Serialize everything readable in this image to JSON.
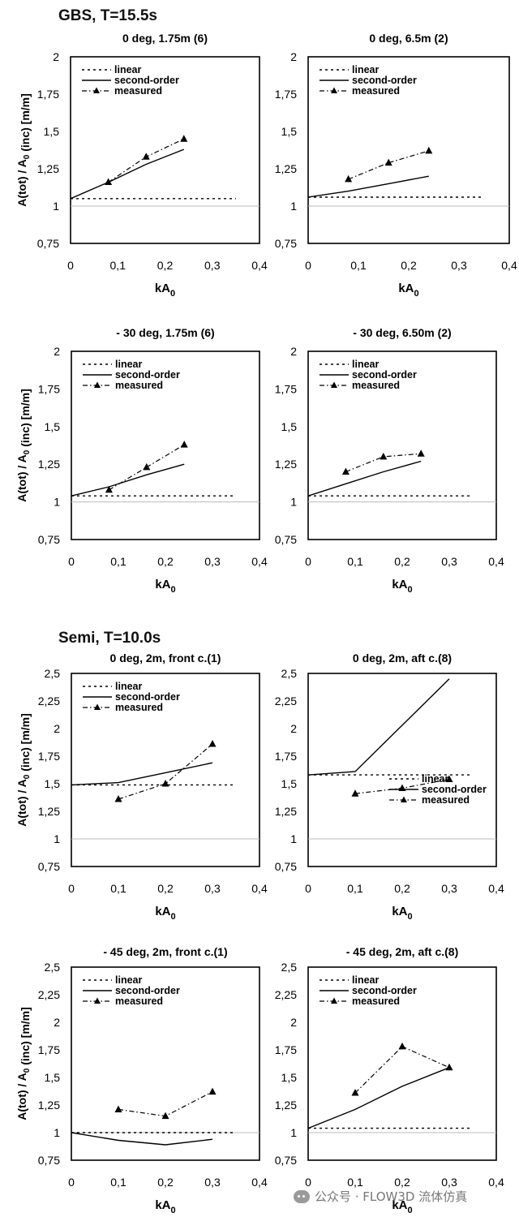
{
  "sections": [
    {
      "title": "GBS,  T=15.5s"
    },
    {
      "title": "Semi,  T=10.0s"
    }
  ],
  "watermark": "公众号 · FLOW3D 流体仿真",
  "chart_data": [
    {
      "type": "line",
      "title": "0 deg, 1.75m (6)",
      "ylabel": "A(tot) / A0 (inc) [m/m]",
      "xlabel": "kA0",
      "xlim": [
        0,
        0.4
      ],
      "ylim": [
        0.75,
        2
      ],
      "xticks": [
        "0",
        "0,1",
        "0,2",
        "0,3",
        "0,4"
      ],
      "yticks": [
        "0,75",
        "1",
        "1,25",
        "1,5",
        "1,75",
        "2"
      ],
      "legend_position": "top-left",
      "series": [
        {
          "name": "linear",
          "x": [
            0,
            0.35
          ],
          "y": [
            1.05,
            1.05
          ]
        },
        {
          "name": "second-order",
          "x": [
            0,
            0.08,
            0.16,
            0.24
          ],
          "y": [
            1.05,
            1.16,
            1.28,
            1.38
          ]
        },
        {
          "name": "measured",
          "x": [
            0.08,
            0.16,
            0.24
          ],
          "y": [
            1.16,
            1.33,
            1.45
          ]
        }
      ]
    },
    {
      "type": "line",
      "title": "0 deg, 6.5m (2)",
      "xlabel": "kA0",
      "xlim": [
        0,
        0.4
      ],
      "ylim": [
        0.75,
        2
      ],
      "xticks": [
        "0",
        "0,1",
        "0,2",
        "0,3",
        "0,4"
      ],
      "yticks": [
        "0,75",
        "1",
        "1,25",
        "1,5",
        "1,75",
        "2"
      ],
      "legend_position": "top-left",
      "series": [
        {
          "name": "linear",
          "x": [
            0,
            0.35
          ],
          "y": [
            1.06,
            1.06
          ]
        },
        {
          "name": "second-order",
          "x": [
            0,
            0.08,
            0.16,
            0.24
          ],
          "y": [
            1.06,
            1.1,
            1.15,
            1.2
          ]
        },
        {
          "name": "measured",
          "x": [
            0.08,
            0.16,
            0.24
          ],
          "y": [
            1.18,
            1.29,
            1.37
          ]
        }
      ]
    },
    {
      "type": "line",
      "title": "- 30 deg, 1.75m (6)",
      "ylabel": "A(tot) / A0 (inc) [m/m]",
      "xlabel": "kA0",
      "xlim": [
        0,
        0.4
      ],
      "ylim": [
        0.75,
        2
      ],
      "xticks": [
        "0",
        "0,1",
        "0,2",
        "0,3",
        "0,4"
      ],
      "yticks": [
        "0,75",
        "1",
        "1,25",
        "1,5",
        "1,75",
        "2"
      ],
      "legend_position": "top-left",
      "series": [
        {
          "name": "linear",
          "x": [
            0,
            0.35
          ],
          "y": [
            1.04,
            1.04
          ]
        },
        {
          "name": "second-order",
          "x": [
            0,
            0.08,
            0.16,
            0.24
          ],
          "y": [
            1.04,
            1.1,
            1.18,
            1.25
          ]
        },
        {
          "name": "measured",
          "x": [
            0.08,
            0.16,
            0.24
          ],
          "y": [
            1.08,
            1.23,
            1.38
          ]
        }
      ]
    },
    {
      "type": "line",
      "title": "- 30 deg, 6.50m (2)",
      "xlabel": "kA0",
      "xlim": [
        0,
        0.4
      ],
      "ylim": [
        0.75,
        2
      ],
      "xticks": [
        "0",
        "0,1",
        "0,2",
        "0,3",
        "0,4"
      ],
      "yticks": [
        "0,75",
        "1",
        "1,25",
        "1,5",
        "1,75",
        "2"
      ],
      "legend_position": "top-left",
      "series": [
        {
          "name": "linear",
          "x": [
            0,
            0.35
          ],
          "y": [
            1.04,
            1.04
          ]
        },
        {
          "name": "second-order",
          "x": [
            0,
            0.08,
            0.16,
            0.24
          ],
          "y": [
            1.04,
            1.12,
            1.2,
            1.27
          ]
        },
        {
          "name": "measured",
          "x": [
            0.08,
            0.16,
            0.24
          ],
          "y": [
            1.2,
            1.3,
            1.32
          ]
        }
      ]
    },
    {
      "type": "line",
      "title": "0 deg, 2m, front c.(1)",
      "ylabel": "A(tot) / A0 (inc) [m/m]",
      "xlabel": "kA0",
      "xlim": [
        0,
        0.4
      ],
      "ylim": [
        0.75,
        2.5
      ],
      "xticks": [
        "0",
        "0,1",
        "0,2",
        "0,3",
        "0,4"
      ],
      "yticks": [
        "0,75",
        "1",
        "1,25",
        "1,5",
        "1,75",
        "2",
        "2,25",
        "2,5"
      ],
      "legend_position": "top-left",
      "series": [
        {
          "name": "linear",
          "x": [
            0,
            0.35
          ],
          "y": [
            1.49,
            1.49
          ]
        },
        {
          "name": "second-order",
          "x": [
            0,
            0.1,
            0.2,
            0.3
          ],
          "y": [
            1.49,
            1.51,
            1.6,
            1.69
          ]
        },
        {
          "name": "measured",
          "x": [
            0.1,
            0.2,
            0.3
          ],
          "y": [
            1.36,
            1.5,
            1.86
          ]
        }
      ]
    },
    {
      "type": "line",
      "title": "0 deg, 2m, aft c.(8)",
      "xlabel": "kA0",
      "xlim": [
        0,
        0.4
      ],
      "ylim": [
        0.75,
        2.5
      ],
      "xticks": [
        "0",
        "0,1",
        "0,2",
        "0,3",
        "0,4"
      ],
      "yticks": [
        "0,75",
        "1",
        "1,25",
        "1,5",
        "1,75",
        "2",
        "2,25",
        "2,5"
      ],
      "legend_position": "bottom-right",
      "series": [
        {
          "name": "linear",
          "x": [
            0,
            0.35
          ],
          "y": [
            1.58,
            1.58
          ]
        },
        {
          "name": "second-order",
          "x": [
            0,
            0.1,
            0.2,
            0.3
          ],
          "y": [
            1.58,
            1.61,
            2.03,
            2.45
          ]
        },
        {
          "name": "measured",
          "x": [
            0.1,
            0.2,
            0.3
          ],
          "y": [
            1.41,
            1.46,
            1.54
          ]
        }
      ]
    },
    {
      "type": "line",
      "title": "- 45 deg, 2m, front c.(1)",
      "ylabel": "A(tot) / A0 (inc) [m/m]",
      "xlabel": "kA0",
      "xlim": [
        0,
        0.4
      ],
      "ylim": [
        0.75,
        2.5
      ],
      "xticks": [
        "0",
        "0,1",
        "0,2",
        "0,3",
        "0,4"
      ],
      "yticks": [
        "0,75",
        "1",
        "1,25",
        "1,5",
        "1,75",
        "2",
        "2,25",
        "2,5"
      ],
      "legend_position": "top-left",
      "series": [
        {
          "name": "linear",
          "x": [
            0,
            0.35
          ],
          "y": [
            1.0,
            1.0
          ]
        },
        {
          "name": "second-order",
          "x": [
            0,
            0.1,
            0.2,
            0.3
          ],
          "y": [
            1.0,
            0.93,
            0.89,
            0.94
          ]
        },
        {
          "name": "measured",
          "x": [
            0.1,
            0.2,
            0.3
          ],
          "y": [
            1.21,
            1.15,
            1.37
          ]
        }
      ]
    },
    {
      "type": "line",
      "title": "- 45 deg, 2m, aft c.(8)",
      "xlabel": "kA0",
      "xlim": [
        0,
        0.4
      ],
      "ylim": [
        0.75,
        2.5
      ],
      "xticks": [
        "0",
        "0,1",
        "0,2",
        "0,3",
        "0,4"
      ],
      "yticks": [
        "0,75",
        "1",
        "1,25",
        "1,5",
        "1,75",
        "2",
        "2,25",
        "2,5"
      ],
      "legend_position": "top-left",
      "series": [
        {
          "name": "linear",
          "x": [
            0,
            0.35
          ],
          "y": [
            1.04,
            1.04
          ]
        },
        {
          "name": "second-order",
          "x": [
            0,
            0.1,
            0.2,
            0.3
          ],
          "y": [
            1.04,
            1.21,
            1.42,
            1.59
          ]
        },
        {
          "name": "measured",
          "x": [
            0.1,
            0.2,
            0.3
          ],
          "y": [
            1.36,
            1.78,
            1.59
          ]
        }
      ]
    }
  ]
}
